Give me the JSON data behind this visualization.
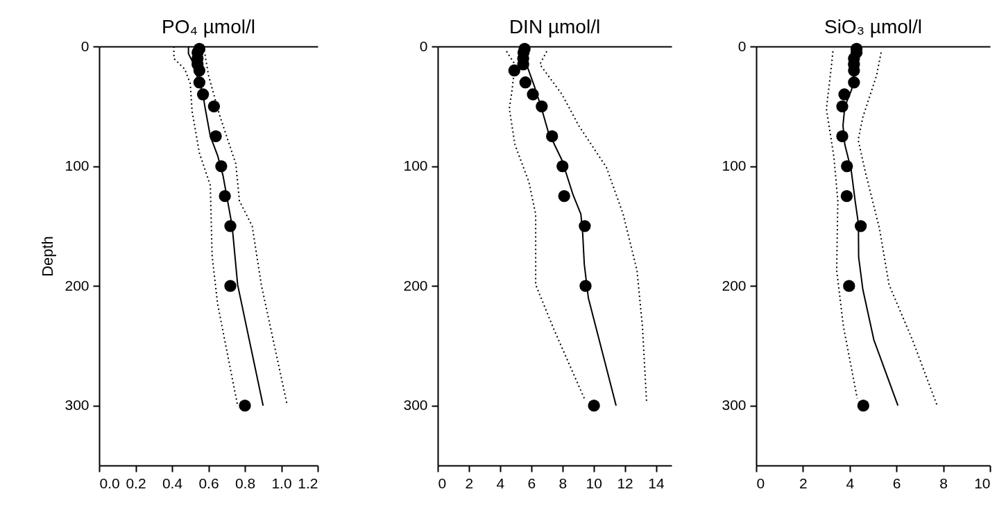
{
  "chart_data": [
    {
      "type": "scatter",
      "title": "PO₄ µmol/l",
      "ylabel": "Depth",
      "xlim": [
        0,
        1.2
      ],
      "xticks": [
        {
          "value": 0,
          "label": "0.0"
        },
        0.2,
        0.4,
        0.6,
        0.8,
        {
          "value": 1,
          "label": "1.0"
        },
        1.2
      ],
      "ylim": [
        350,
        0
      ],
      "yticks": [
        0,
        100,
        200,
        300
      ],
      "grid": false,
      "legend": false,
      "series": [
        {
          "type": "scatter",
          "marker": "circle",
          "color": "#000000",
          "x": [
            0.55,
            0.54,
            0.54,
            0.54,
            0.55,
            0.55,
            0.57,
            0.63,
            0.64,
            0.67,
            0.69,
            0.72,
            0.72,
            0.8
          ],
          "values": [
            2,
            5,
            10,
            15,
            20,
            30,
            40,
            50,
            75,
            100,
            125,
            150,
            200,
            300
          ]
        },
        {
          "type": "line",
          "line_style": "solid",
          "color": "#000000",
          "x": [
            0.49,
            0.49,
            0.51,
            0.55,
            0.57,
            0.58,
            0.61,
            0.65,
            0.68,
            0.73,
            0.76,
            0.9
          ],
          "values": [
            0,
            6,
            12,
            31,
            40,
            50,
            75,
            91,
            108,
            150,
            199,
            300
          ]
        },
        {
          "type": "line",
          "line_style": "dotted",
          "color": "#000000",
          "x": [
            0.41,
            0.41,
            0.47,
            0.5,
            0.51,
            0.55,
            0.61,
            0.62,
            0.65,
            0.76
          ],
          "values": [
            0,
            10,
            19,
            31,
            54,
            89,
            116,
            175,
            215,
            300
          ]
        },
        {
          "type": "line",
          "line_style": "dotted",
          "color": "#000000",
          "x": [
            0.57,
            0.58,
            0.6,
            0.66,
            0.75,
            0.77,
            0.84,
            0.89,
            1.03
          ],
          "values": [
            0,
            6,
            24,
            57,
            98,
            129,
            150,
            199,
            298
          ]
        }
      ]
    },
    {
      "type": "scatter",
      "title": "DIN µmol/l",
      "xlim": [
        0,
        15
      ],
      "xticks": [
        0,
        2,
        4,
        6,
        8,
        10,
        12,
        14
      ],
      "ylim": [
        350,
        0
      ],
      "yticks": [
        0,
        100,
        200,
        300
      ],
      "grid": false,
      "legend": false,
      "series": [
        {
          "type": "scatter",
          "marker": "circle",
          "color": "#000000",
          "x": [
            5.57,
            5.5,
            5.48,
            5.48,
            4.91,
            5.62,
            6.1,
            6.67,
            7.33,
            8.0,
            8.11,
            9.43,
            9.48,
            10.02
          ],
          "values": [
            2,
            5,
            10,
            15,
            20,
            30,
            40,
            50,
            75,
            100,
            125,
            150,
            200,
            300
          ]
        },
        {
          "type": "line",
          "line_style": "solid",
          "color": "#000000",
          "x": [
            5.57,
            5.75,
            6.19,
            6.64,
            7.08,
            7.97,
            8.68,
            9.18,
            9.3,
            9.4,
            9.66,
            11.44
          ],
          "values": [
            0,
            17,
            33,
            51,
            71,
            95,
            124,
            140,
            157,
            182,
            210,
            300
          ]
        },
        {
          "type": "line",
          "line_style": "dotted",
          "color": "#000000",
          "x": [
            4.41,
            4.95,
            4.77,
            4.59,
            4.95,
            5.84,
            6.28,
            6.28,
            7.44,
            9.4
          ],
          "values": [
            4,
            15,
            36,
            52,
            82,
            113,
            140,
            199,
            236,
            294
          ]
        },
        {
          "type": "line",
          "line_style": "dotted",
          "color": "#000000",
          "x": [
            6.99,
            6.55,
            7.97,
            9.04,
            10.82,
            11.89,
            12.78,
            13.13,
            13.4
          ],
          "values": [
            4,
            15,
            40,
            66,
            101,
            140,
            187,
            234,
            298
          ]
        }
      ]
    },
    {
      "type": "scatter",
      "title": "SiO₃ µmol/l",
      "xlim": [
        0,
        10
      ],
      "xticks": [
        0,
        2,
        4,
        6,
        8,
        10
      ],
      "ylim": [
        350,
        0
      ],
      "yticks": [
        0,
        100,
        200,
        300
      ],
      "grid": false,
      "legend": false,
      "series": [
        {
          "type": "scatter",
          "marker": "circle",
          "color": "#000000",
          "x": [
            4.29,
            4.29,
            4.18,
            4.18,
            4.18,
            4.18,
            3.77,
            3.68,
            3.68,
            3.88,
            3.87,
            4.47,
            3.97,
            4.58
          ],
          "values": [
            2,
            5,
            10,
            15,
            20,
            30,
            40,
            50,
            75,
            100,
            125,
            150,
            200,
            300
          ]
        },
        {
          "type": "line",
          "line_style": "solid",
          "color": "#000000",
          "x": [
            4.26,
            4.18,
            4.08,
            3.79,
            3.71,
            3.79,
            4.06,
            4.23,
            4.37,
            4.38,
            4.56,
            5.03,
            6.06
          ],
          "values": [
            3,
            24,
            36,
            50,
            66,
            82,
            103,
            129,
            148,
            176,
            203,
            245,
            300
          ]
        },
        {
          "type": "line",
          "line_style": "dotted",
          "color": "#000000",
          "x": [
            3.28,
            3.2,
            3.0,
            3.32,
            3.49,
            3.44,
            3.73,
            4.32
          ],
          "values": [
            4,
            19,
            52,
            92,
            129,
            187,
            234,
            294
          ]
        },
        {
          "type": "line",
          "line_style": "dotted",
          "color": "#000000",
          "x": [
            5.34,
            5.15,
            4.56,
            4.36,
            4.68,
            5.27,
            5.68,
            6.68,
            7.72
          ],
          "values": [
            5,
            24,
            59,
            78,
            106,
            152,
            199,
            245,
            299
          ]
        }
      ]
    }
  ]
}
